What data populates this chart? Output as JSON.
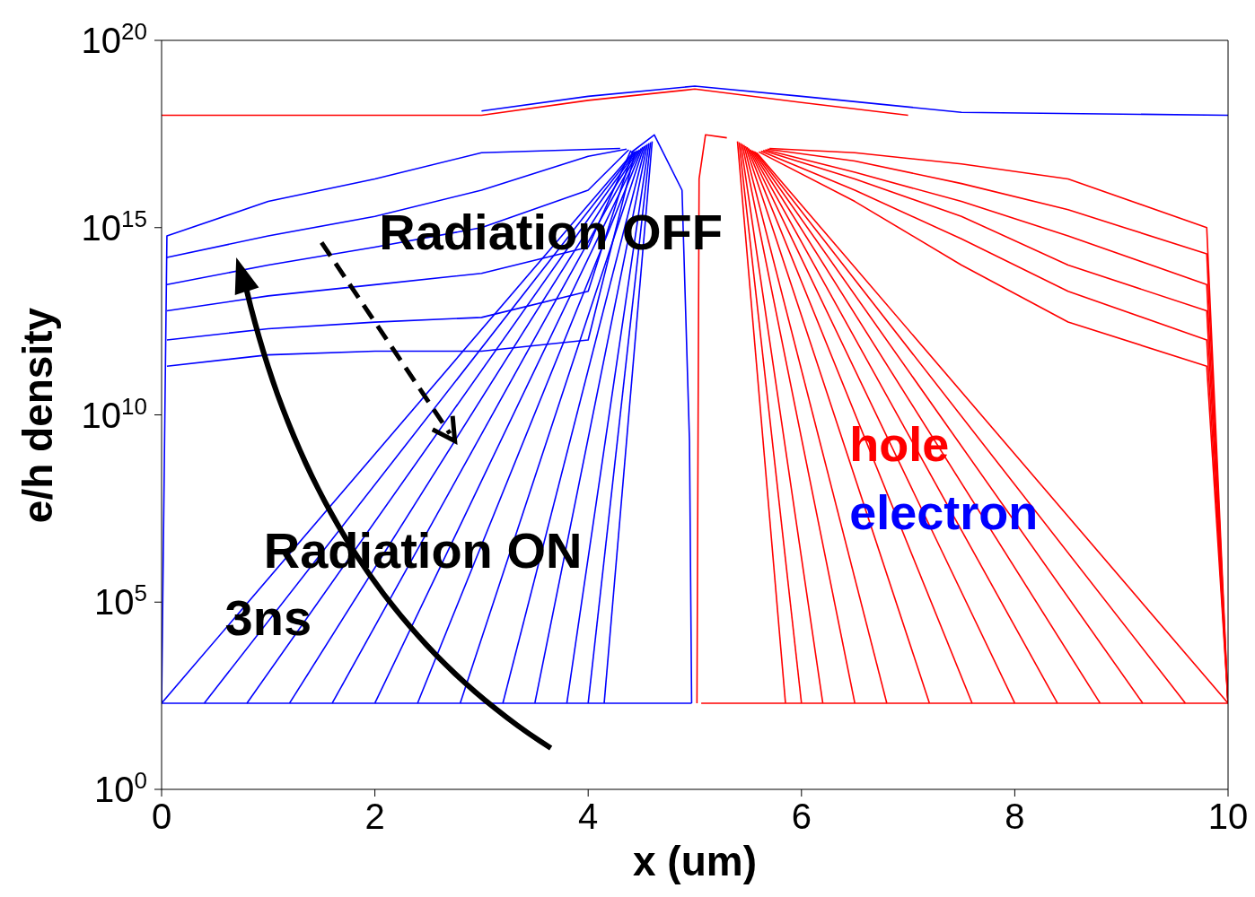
{
  "chart_data": {
    "type": "line",
    "xlabel": "x (um)",
    "ylabel": "e/h density",
    "log": "y",
    "xlim": [
      0,
      10
    ],
    "xticks": [
      0,
      2,
      4,
      6,
      8,
      10
    ],
    "ylim": [
      1,
      1e+20
    ],
    "yticks": [
      {
        "value": 1,
        "label": "10$^{0}$"
      },
      {
        "value": 100000,
        "label": "10$^{5}$"
      },
      {
        "value": 10000000000,
        "label": "10$^{10}$"
      },
      {
        "value": 1000000000000000.0,
        "label": "10$^{15}$"
      },
      {
        "value": 1e+20,
        "label": "10$^{20}$"
      }
    ],
    "marker": "none",
    "line_style": "solid",
    "legend": "right",
    "annotations": [
      "Radiation OFF",
      "Radiation ON",
      "3ns"
    ],
    "series": [
      {
        "name": "hole",
        "color": "#ff0000",
        "x": [
          0,
          3,
          4,
          5,
          6,
          7
        ],
        "values": [
          1e+18,
          1e+18,
          2.5e+18,
          5e+18,
          2.2e+18,
          1e+18
        ]
      },
      {
        "name": "electron",
        "color": "#0000ff",
        "x": [
          3,
          4,
          5,
          6,
          7.5,
          10
        ],
        "values": [
          1.3e+18,
          3.2e+18,
          6e+18,
          3.2e+18,
          1.2e+18,
          1e+18
        ]
      },
      {
        "color": "#0000ff",
        "x": [
          0,
          4.97
        ],
        "values": [
          200,
          200
        ]
      },
      {
        "color": "#0000ff",
        "x": [
          4.4,
          4.62,
          4.88,
          4.95,
          4.97
        ],
        "values": [
          1e+17,
          3e+17,
          1e+16,
          2000000000.0,
          200
        ]
      },
      {
        "color": "#0000ff",
        "x": [
          0,
          4.42
        ],
        "values": [
          200,
          1e+17
        ]
      },
      {
        "color": "#0000ff",
        "x": [
          0.4,
          4.435
        ],
        "values": [
          200,
          1.05e+17
        ]
      },
      {
        "color": "#0000ff",
        "x": [
          0.8,
          4.45
        ],
        "values": [
          200,
          1.1e+17
        ]
      },
      {
        "color": "#0000ff",
        "x": [
          1.2,
          4.465
        ],
        "values": [
          200,
          1.15e+17
        ]
      },
      {
        "color": "#0000ff",
        "x": [
          1.6,
          4.48
        ],
        "values": [
          200,
          1.2e+17
        ]
      },
      {
        "color": "#0000ff",
        "x": [
          2.0,
          4.495
        ],
        "values": [
          200,
          1.3e+17
        ]
      },
      {
        "color": "#0000ff",
        "x": [
          2.4,
          4.51
        ],
        "values": [
          200,
          1.4e+17
        ]
      },
      {
        "color": "#0000ff",
        "x": [
          2.8,
          4.525
        ],
        "values": [
          200,
          1.5e+17
        ]
      },
      {
        "color": "#0000ff",
        "x": [
          3.2,
          4.54
        ],
        "values": [
          200,
          1.6e+17
        ]
      },
      {
        "color": "#0000ff",
        "x": [
          3.5,
          4.555
        ],
        "values": [
          200,
          1.7e+17
        ]
      },
      {
        "color": "#0000ff",
        "x": [
          3.8,
          4.57
        ],
        "values": [
          200,
          1.8e+17
        ]
      },
      {
        "color": "#0000ff",
        "x": [
          4.0,
          4.585
        ],
        "values": [
          200,
          1.9e+17
        ]
      },
      {
        "color": "#0000ff",
        "x": [
          4.15,
          4.6
        ],
        "values": [
          200,
          2e+17
        ]
      },
      {
        "color": "#0000ff",
        "x": [
          0,
          0.05,
          1,
          2,
          3,
          4.3
        ],
        "values": [
          200,
          600000000000000.0,
          5000000000000000.0,
          2e+16,
          1e+17,
          1.3e+17
        ]
      },
      {
        "color": "#0000ff",
        "x": [
          0.05,
          1,
          2,
          3,
          4,
          4.36
        ],
        "values": [
          160000000000000.0,
          600000000000000.0,
          2000000000000000.0,
          1e+16,
          8e+16,
          1.25e+17
        ]
      },
      {
        "color": "#0000ff",
        "x": [
          0.05,
          1,
          2,
          3,
          4,
          4.38
        ],
        "values": [
          30000000000000.0,
          100000000000000.0,
          300000000000000.0,
          1000000000000000.0,
          1e+16,
          1.2e+17
        ]
      },
      {
        "color": "#0000ff",
        "x": [
          0.05,
          1,
          2,
          3,
          4,
          4.4
        ],
        "values": [
          6000000000000.0,
          15000000000000.0,
          30000000000000.0,
          60000000000000.0,
          300000000000000.0,
          1.15e+17
        ]
      },
      {
        "color": "#0000ff",
        "x": [
          0.05,
          1,
          2,
          3,
          4,
          4.42
        ],
        "values": [
          1000000000000.0,
          2000000000000.0,
          3000000000000.0,
          4000000000000.0,
          20000000000000.0,
          1.1e+17
        ]
      },
      {
        "color": "#0000ff",
        "x": [
          0.05,
          1,
          2,
          3,
          4,
          4.44
        ],
        "values": [
          200000000000.0,
          400000000000.0,
          500000000000.0,
          500000000000.0,
          1000000000000.0,
          1.05e+17
        ]
      },
      {
        "color": "#ff0000",
        "x": [
          5.06,
          10
        ],
        "values": [
          200,
          200
        ]
      },
      {
        "color": "#ff0000",
        "x": [
          5.02,
          5.04,
          5.1,
          5.3
        ],
        "values": [
          200,
          2e+16,
          3e+17,
          2.5e+17
        ]
      },
      {
        "color": "#ff0000",
        "x": [
          5.4,
          5.85
        ],
        "values": [
          2e+17,
          200
        ]
      },
      {
        "color": "#ff0000",
        "x": [
          5.415,
          6.0
        ],
        "values": [
          1.9e+17,
          200
        ]
      },
      {
        "color": "#ff0000",
        "x": [
          5.43,
          6.2
        ],
        "values": [
          1.8e+17,
          200
        ]
      },
      {
        "color": "#ff0000",
        "x": [
          5.445,
          6.5
        ],
        "values": [
          1.7e+17,
          200
        ]
      },
      {
        "color": "#ff0000",
        "x": [
          5.46,
          6.8
        ],
        "values": [
          1.6e+17,
          200
        ]
      },
      {
        "color": "#ff0000",
        "x": [
          5.475,
          7.2
        ],
        "values": [
          1.5e+17,
          200
        ]
      },
      {
        "color": "#ff0000",
        "x": [
          5.49,
          7.6
        ],
        "values": [
          1.4e+17,
          200
        ]
      },
      {
        "color": "#ff0000",
        "x": [
          5.505,
          8.0
        ],
        "values": [
          1.3e+17,
          200
        ]
      },
      {
        "color": "#ff0000",
        "x": [
          5.52,
          8.4
        ],
        "values": [
          1.2e+17,
          200
        ]
      },
      {
        "color": "#ff0000",
        "x": [
          5.535,
          8.8
        ],
        "values": [
          1.15e+17,
          200
        ]
      },
      {
        "color": "#ff0000",
        "x": [
          5.55,
          9.2
        ],
        "values": [
          1.1e+17,
          200
        ]
      },
      {
        "color": "#ff0000",
        "x": [
          5.565,
          9.6
        ],
        "values": [
          1.05e+17,
          200
        ]
      },
      {
        "color": "#ff0000",
        "x": [
          5.58,
          10
        ],
        "values": [
          1e+17,
          200
        ]
      },
      {
        "color": "#ff0000",
        "x": [
          5.7,
          6.5,
          7.5,
          8.5,
          9.8,
          10
        ],
        "values": [
          1.3e+17,
          1e+17,
          5e+16,
          2e+16,
          1000000000000000.0,
          200
        ]
      },
      {
        "color": "#ff0000",
        "x": [
          5.68,
          6.5,
          7.5,
          8.5,
          9.8,
          10
        ],
        "values": [
          1.25e+17,
          6e+16,
          1.5e+16,
          3000000000000000.0,
          200000000000000.0,
          200
        ]
      },
      {
        "color": "#ff0000",
        "x": [
          5.66,
          6.5,
          7.5,
          8.5,
          9.8,
          10
        ],
        "values": [
          1.2e+17,
          3e+16,
          5000000000000000.0,
          600000000000000.0,
          30000000000000.0,
          200
        ]
      },
      {
        "color": "#ff0000",
        "x": [
          5.64,
          6.5,
          7.5,
          8.5,
          9.8,
          10
        ],
        "values": [
          1.15e+17,
          2e+16,
          2000000000000000.0,
          100000000000000.0,
          6000000000000.0,
          200
        ]
      },
      {
        "color": "#ff0000",
        "x": [
          5.62,
          6.5,
          7.5,
          8.5,
          9.8,
          10
        ],
        "values": [
          1.1e+17,
          1e+16,
          500000000000000.0,
          20000000000000.0,
          1000000000000.0,
          200
        ]
      },
      {
        "color": "#ff0000",
        "x": [
          5.6,
          6.5,
          7.5,
          8.5,
          9.8,
          10
        ],
        "values": [
          1.05e+17,
          5000000000000000.0,
          100000000000000.0,
          3000000000000.0,
          200000000000.0,
          200
        ]
      }
    ]
  }
}
